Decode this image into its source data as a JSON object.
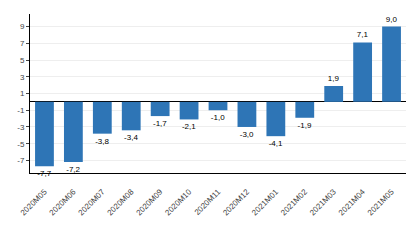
{
  "chart_data": {
    "type": "bar",
    "categories": [
      "2020M05",
      "2020M06",
      "2020M07",
      "2020M08",
      "2020M09",
      "2020M10",
      "2020M11",
      "2020M12",
      "2021M01",
      "2021M02",
      "2021M03",
      "2021M04",
      "2021M05"
    ],
    "values": [
      -7.7,
      -7.2,
      -3.8,
      -3.4,
      -1.7,
      -2.1,
      -1.0,
      -3.0,
      -4.1,
      -1.9,
      1.9,
      7.1,
      9.0
    ],
    "value_labels": [
      "-7,7",
      "-7,2",
      "-3,8",
      "-3,4",
      "-1,7",
      "-2,1",
      "-1,0",
      "-3,0",
      "-4,1",
      "-1,9",
      "1,9",
      "7,1",
      "9,0"
    ],
    "color": "#2e75b6",
    "ylim": [
      -8.5,
      10.5
    ],
    "yticks": [
      -7,
      -5,
      -3,
      -1,
      1,
      3,
      5,
      7,
      9
    ],
    "grid": true,
    "data_labels": true
  }
}
